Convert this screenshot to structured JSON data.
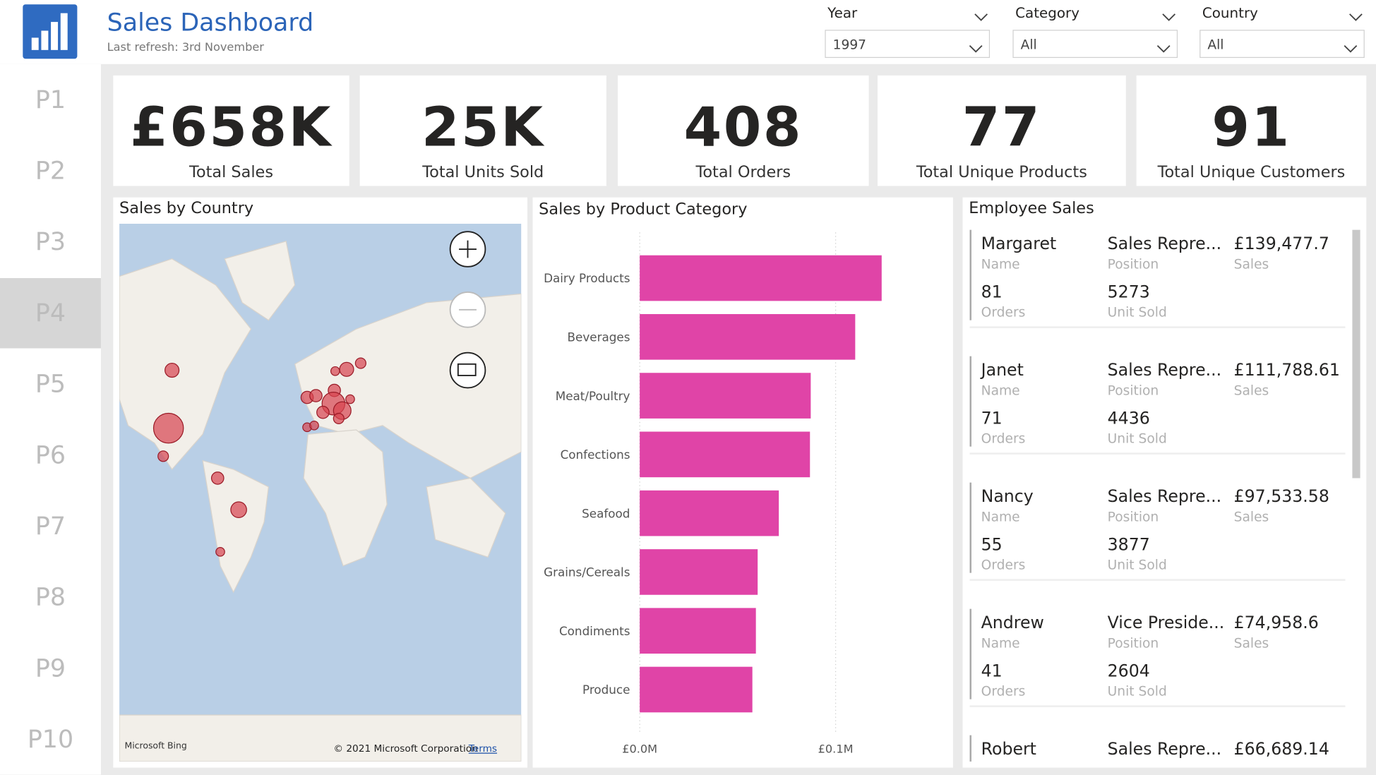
{
  "header": {
    "title": "Sales Dashboard",
    "subtitle": "Last refresh: 3rd November"
  },
  "filters": [
    {
      "label": "Year",
      "value": "1997"
    },
    {
      "label": "Category",
      "value": "All"
    },
    {
      "label": "Country",
      "value": "All"
    }
  ],
  "nav": [
    "P1",
    "P2",
    "P3",
    "P4",
    "P5",
    "P6",
    "P7",
    "P8",
    "P9",
    "P10"
  ],
  "kpis": [
    {
      "value": "£658K",
      "label": "Total Sales"
    },
    {
      "value": "25K",
      "label": "Total Units Sold"
    },
    {
      "value": "408",
      "label": "Total Orders"
    },
    {
      "value": "77",
      "label": "Total Unique Products"
    },
    {
      "value": "91",
      "label": "Total Unique Customers"
    }
  ],
  "map": {
    "title": "Sales by Country",
    "attribution": "Microsoft Bing",
    "copyright": "© 2021 Microsoft Corporation",
    "terms": "Terms"
  },
  "chart_data": {
    "type": "bar",
    "orientation": "horizontal",
    "title": "Sales by Product Category",
    "categories": [
      "Dairy Products",
      "Beverages",
      "Meat/Poultry",
      "Confections",
      "Seafood",
      "Grains/Cereals",
      "Condiments",
      "Produce"
    ],
    "values": [
      123500,
      110000,
      87300,
      86900,
      71000,
      60200,
      59300,
      57500
    ],
    "color": "#e044a7",
    "xlim": [
      0,
      155000
    ],
    "xticks": [
      {
        "value": 0,
        "label": "£0.0M"
      },
      {
        "value": 100000,
        "label": "£0.1M"
      }
    ],
    "grid": true
  },
  "employees": {
    "title": "Employee Sales",
    "labels": {
      "name": "Name",
      "position": "Position",
      "sales": "Sales",
      "orders": "Orders",
      "units": "Unit Sold"
    },
    "rows": [
      {
        "name": "Margaret",
        "position": "Sales Repre...",
        "sales": "£139,477.7",
        "orders": "81",
        "units": "5273"
      },
      {
        "name": "Janet",
        "position": "Sales Repre...",
        "sales": "£111,788.61",
        "orders": "71",
        "units": "4436"
      },
      {
        "name": "Nancy",
        "position": "Sales Repre...",
        "sales": "£97,533.58",
        "orders": "55",
        "units": "3877"
      },
      {
        "name": "Andrew",
        "position": "Vice Preside...",
        "sales": "£74,958.6",
        "orders": "41",
        "units": "2604"
      },
      {
        "name": "Robert",
        "position": "Sales Repre...",
        "sales": "£66,689.14"
      }
    ]
  }
}
